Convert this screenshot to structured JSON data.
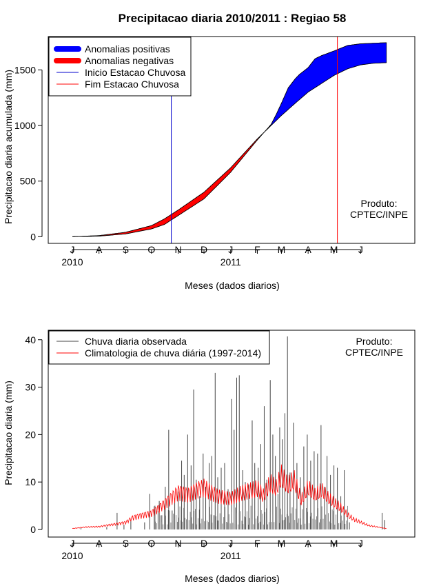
{
  "chart_data": [
    {
      "type": "area",
      "title": "Precipitacao diaria 2010/2011 : Regiao 58",
      "xlabel": "Meses (dados diarios)",
      "ylabel": "Precipitacao diaria acumulada (mm)",
      "ylim": [
        -60,
        1800
      ],
      "yticks": [
        0,
        500,
        1000,
        1500
      ],
      "xlim": [
        -28,
        398
      ],
      "xticks": [
        {
          "day": 0,
          "label": "J"
        },
        {
          "day": 31,
          "label": "A"
        },
        {
          "day": 62,
          "label": "S"
        },
        {
          "day": 92,
          "label": "O"
        },
        {
          "day": 123,
          "label": "N"
        },
        {
          "day": 153,
          "label": "D"
        },
        {
          "day": 184,
          "label": "J"
        },
        {
          "day": 215,
          "label": "F"
        },
        {
          "day": 243,
          "label": "M"
        },
        {
          "day": 274,
          "label": "A"
        },
        {
          "day": 304,
          "label": "M"
        },
        {
          "day": 335,
          "label": "J"
        }
      ],
      "year_labels": [
        {
          "day": 0,
          "label": "2010"
        },
        {
          "day": 184,
          "label": "2011"
        }
      ],
      "legend": [
        "Anomalias positivas",
        "Anomalias negativas",
        "Inicio Estacao Chuvosa",
        "Fim Estacao Chuvosa"
      ],
      "annotation": [
        "Produto:",
        "CPTEC/INPE"
      ],
      "rainy_season_start_day": 115,
      "rainy_season_end_day": 308,
      "climatology": {
        "day": [
          0,
          31,
          62,
          92,
          107,
          123,
          153,
          184,
          215,
          231,
          243,
          259,
          274,
          290,
          304,
          320,
          335,
          350,
          365
        ],
        "value": [
          0,
          10,
          40,
          100,
          160,
          240,
          400,
          620,
          880,
          1000,
          1090,
          1200,
          1300,
          1380,
          1450,
          1510,
          1545,
          1560,
          1565
        ]
      },
      "observed": {
        "day": [
          0,
          31,
          62,
          92,
          107,
          123,
          153,
          184,
          215,
          231,
          237,
          243,
          251,
          259,
          264,
          274,
          282,
          290,
          304,
          320,
          335,
          350,
          365
        ],
        "value": [
          0,
          5,
          25,
          70,
          110,
          190,
          340,
          580,
          870,
          1010,
          1100,
          1200,
          1340,
          1420,
          1460,
          1520,
          1600,
          1630,
          1670,
          1720,
          1735,
          1740,
          1745
        ]
      }
    },
    {
      "type": "bar",
      "xlabel": "Meses (dados diarios)",
      "ylabel": "Precipitacao diaria (mm)",
      "ylim": [
        -1.6,
        42
      ],
      "yticks": [
        0,
        10,
        20,
        30,
        40
      ],
      "xlim": [
        -28,
        398
      ],
      "xticks": [
        {
          "day": 0,
          "label": "J"
        },
        {
          "day": 31,
          "label": "A"
        },
        {
          "day": 62,
          "label": "S"
        },
        {
          "day": 92,
          "label": "O"
        },
        {
          "day": 123,
          "label": "N"
        },
        {
          "day": 153,
          "label": "D"
        },
        {
          "day": 184,
          "label": "J"
        },
        {
          "day": 215,
          "label": "F"
        },
        {
          "day": 243,
          "label": "M"
        },
        {
          "day": 274,
          "label": "A"
        },
        {
          "day": 304,
          "label": "M"
        },
        {
          "day": 335,
          "label": "J"
        }
      ],
      "year_labels": [
        {
          "day": 0,
          "label": "2010"
        },
        {
          "day": 184,
          "label": "2011"
        }
      ],
      "legend": [
        "Chuva diaria observada",
        "Climatologia de chuva diária (1997-2014)"
      ],
      "annotation": [
        "Produto:",
        "CPTEC/INPE"
      ],
      "climatology_daily": {
        "day": [
          0,
          15,
          31,
          45,
          62,
          70,
          80,
          92,
          100,
          110,
          123,
          135,
          145,
          153,
          160,
          170,
          184,
          195,
          205,
          215,
          222,
          230,
          237,
          243,
          250,
          258,
          266,
          274,
          282,
          290,
          297,
          304,
          312,
          320,
          328,
          335,
          345,
          355,
          365
        ],
        "value": [
          0.2,
          0.5,
          0.6,
          1.0,
          1.5,
          2.5,
          3.0,
          3.5,
          4.5,
          6.0,
          8.0,
          7.5,
          8.5,
          9.0,
          8.0,
          7.0,
          6.5,
          7.5,
          8.0,
          8.5,
          7.0,
          9.5,
          8.5,
          11.0,
          9.0,
          10.0,
          6.0,
          8.5,
          7.0,
          8.0,
          6.5,
          5.5,
          4.5,
          3.0,
          2.0,
          1.5,
          0.8,
          0.5,
          0.2
        ]
      },
      "daily_rain": [
        {
          "day": 10,
          "value": 0.3
        },
        {
          "day": 40,
          "value": 0.5
        },
        {
          "day": 52,
          "value": 3.5
        },
        {
          "day": 60,
          "value": 1.0
        },
        {
          "day": 68,
          "value": 2.0
        },
        {
          "day": 84,
          "value": 1.5
        },
        {
          "day": 90,
          "value": 7.5
        },
        {
          "day": 96,
          "value": 5.0
        },
        {
          "day": 101,
          "value": 6.0
        },
        {
          "day": 104,
          "value": 3.0
        },
        {
          "day": 108,
          "value": 9.0
        },
        {
          "day": 112,
          "value": 21.0
        },
        {
          "day": 116,
          "value": 4.0
        },
        {
          "day": 119,
          "value": 6.5
        },
        {
          "day": 123,
          "value": 8.0
        },
        {
          "day": 127,
          "value": 14.5
        },
        {
          "day": 130,
          "value": 11.5
        },
        {
          "day": 134,
          "value": 20.0
        },
        {
          "day": 138,
          "value": 13.5
        },
        {
          "day": 141,
          "value": 29.5
        },
        {
          "day": 144,
          "value": 10.5
        },
        {
          "day": 148,
          "value": 7.0
        },
        {
          "day": 152,
          "value": 16.0
        },
        {
          "day": 155,
          "value": 9.0
        },
        {
          "day": 159,
          "value": 14.0
        },
        {
          "day": 162,
          "value": 15.5
        },
        {
          "day": 166,
          "value": 33.0
        },
        {
          "day": 169,
          "value": 11.0
        },
        {
          "day": 173,
          "value": 13.0
        },
        {
          "day": 177,
          "value": 14.0
        },
        {
          "day": 181,
          "value": 8.5
        },
        {
          "day": 185,
          "value": 27.5
        },
        {
          "day": 188,
          "value": 21.0
        },
        {
          "day": 191,
          "value": 32.0
        },
        {
          "day": 194,
          "value": 32.5
        },
        {
          "day": 198,
          "value": 12.5
        },
        {
          "day": 201,
          "value": 10.0
        },
        {
          "day": 205,
          "value": 9.5
        },
        {
          "day": 209,
          "value": 23.0
        },
        {
          "day": 212,
          "value": 14.0
        },
        {
          "day": 216,
          "value": 13.0
        },
        {
          "day": 219,
          "value": 18.0
        },
        {
          "day": 223,
          "value": 26.0
        },
        {
          "day": 226,
          "value": 10.5
        },
        {
          "day": 230,
          "value": 31.5
        },
        {
          "day": 233,
          "value": 20.0
        },
        {
          "day": 236,
          "value": 15.5
        },
        {
          "day": 239,
          "value": 7.5
        },
        {
          "day": 241,
          "value": 21.5
        },
        {
          "day": 244,
          "value": 19.0
        },
        {
          "day": 247,
          "value": 24.5
        },
        {
          "day": 250,
          "value": 40.7
        },
        {
          "day": 253,
          "value": 12.0
        },
        {
          "day": 257,
          "value": 22.5
        },
        {
          "day": 261,
          "value": 14.0
        },
        {
          "day": 265,
          "value": 11.0
        },
        {
          "day": 269,
          "value": 17.5
        },
        {
          "day": 273,
          "value": 20.0
        },
        {
          "day": 277,
          "value": 14.5
        },
        {
          "day": 281,
          "value": 16.5
        },
        {
          "day": 285,
          "value": 16.0
        },
        {
          "day": 289,
          "value": 22.0
        },
        {
          "day": 293,
          "value": 9.0
        },
        {
          "day": 296,
          "value": 15.5
        },
        {
          "day": 300,
          "value": 11.5
        },
        {
          "day": 304,
          "value": 13.5
        },
        {
          "day": 308,
          "value": 13.0
        },
        {
          "day": 312,
          "value": 7.0
        },
        {
          "day": 316,
          "value": 12.5
        },
        {
          "day": 322,
          "value": 1.5
        },
        {
          "day": 360,
          "value": 3.5
        },
        {
          "day": 363,
          "value": 2.0
        }
      ]
    }
  ]
}
